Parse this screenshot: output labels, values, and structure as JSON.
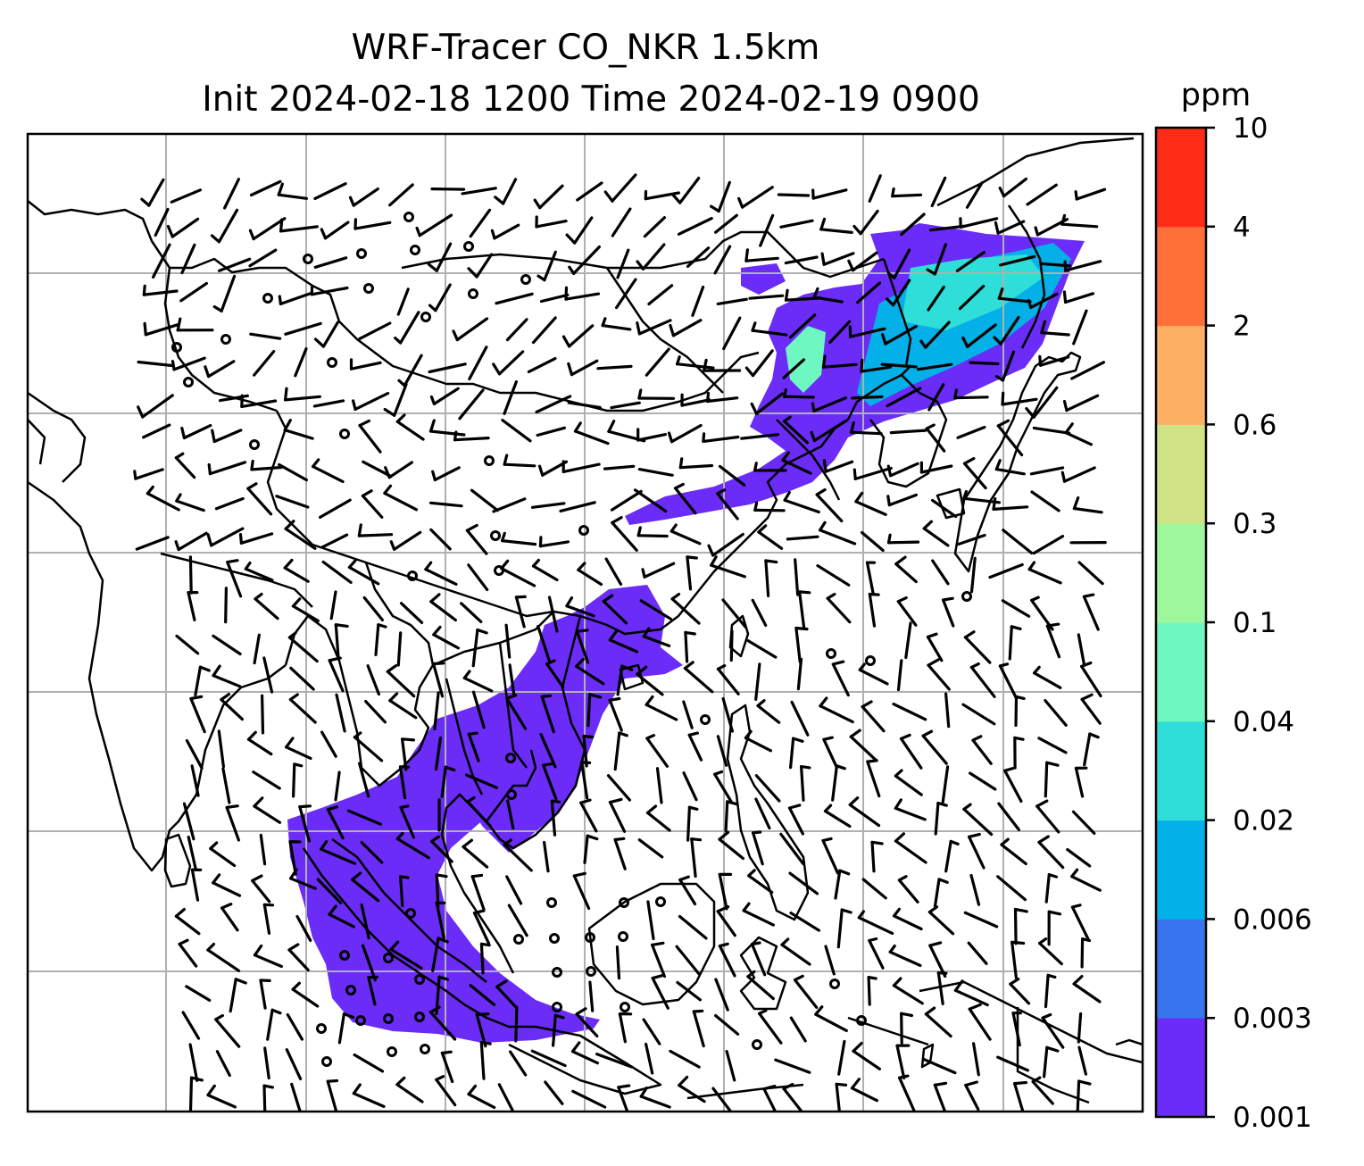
{
  "title": {
    "line1": "WRF-Tracer CO_NKR 1.5km",
    "line2": "Init 2024-02-18 1200 Time 2024-02-19 0900"
  },
  "colorbar": {
    "unit": "ppm",
    "ticks": [
      "0.001",
      "0.003",
      "0.006",
      "0.02",
      "0.04",
      "0.1",
      "0.3",
      "0.6",
      "2",
      "4",
      "10"
    ],
    "colors": [
      "#6a2cf6",
      "#3674f0",
      "#04b0e8",
      "#2fded8",
      "#6ff7c1",
      "#9ef79c",
      "#d0e384",
      "#fdb064",
      "#fe7038",
      "#fe2c16"
    ]
  },
  "map": {
    "grid": true,
    "gridline_color": "#b0b0b0",
    "plume_colors": {
      "base": "#6a2cf6",
      "mid": "#04b0e8",
      "high": "#2fded8",
      "peak": "#6ff7c1"
    }
  }
}
